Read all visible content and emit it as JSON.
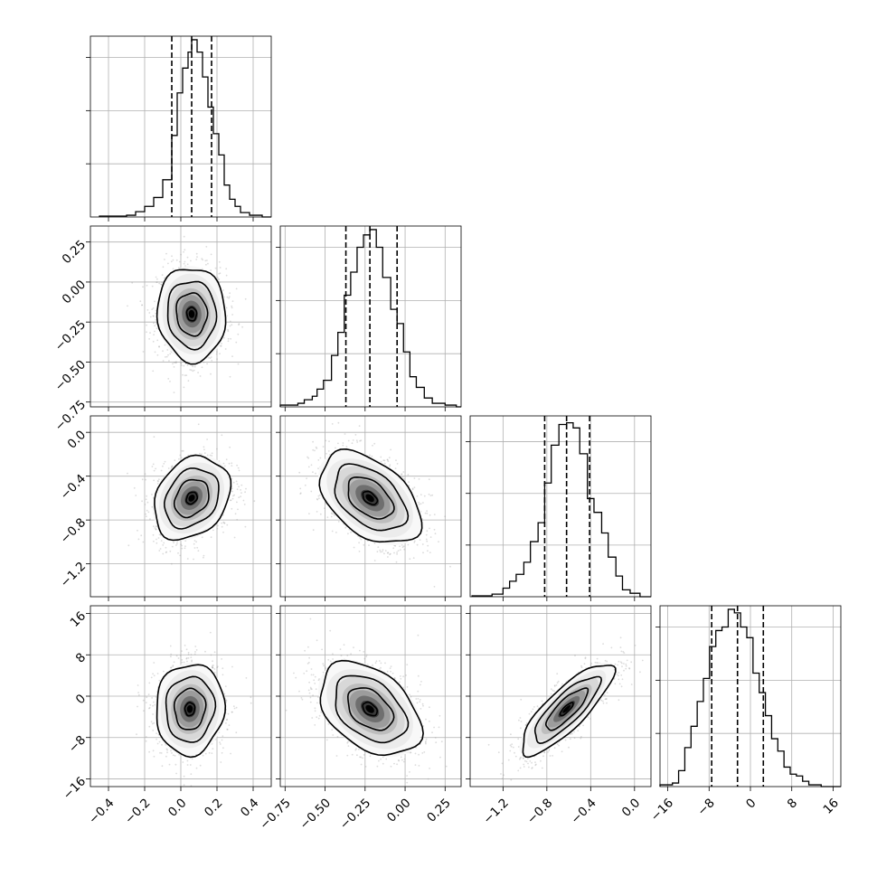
{
  "chart_data": {
    "type": "corner",
    "n_params": 4,
    "params": [
      {
        "range": [
          -0.5,
          0.5
        ],
        "ticks": [
          -0.4,
          -0.2,
          0.0,
          0.2,
          0.4
        ],
        "tick_labels": [
          "−0.4",
          "−0.2",
          "0.0",
          "0.2",
          "0.4"
        ],
        "quantiles": [
          -0.05,
          0.06,
          0.17
        ],
        "hist_max": 1.02,
        "hist": [
          {
            "x": -0.4,
            "y": 0.005
          },
          {
            "x": -0.3,
            "y": 0.01
          },
          {
            "x": -0.25,
            "y": 0.03
          },
          {
            "x": -0.2,
            "y": 0.06
          },
          {
            "x": -0.15,
            "y": 0.11
          },
          {
            "x": -0.1,
            "y": 0.21
          },
          {
            "x": -0.05,
            "y": 0.46
          },
          {
            "x": -0.02,
            "y": 0.7
          },
          {
            "x": 0.01,
            "y": 0.84
          },
          {
            "x": 0.04,
            "y": 0.93
          },
          {
            "x": 0.06,
            "y": 1.0
          },
          {
            "x": 0.09,
            "y": 0.93
          },
          {
            "x": 0.12,
            "y": 0.79
          },
          {
            "x": 0.15,
            "y": 0.62
          },
          {
            "x": 0.18,
            "y": 0.47
          },
          {
            "x": 0.21,
            "y": 0.35
          },
          {
            "x": 0.24,
            "y": 0.18
          },
          {
            "x": 0.27,
            "y": 0.1
          },
          {
            "x": 0.3,
            "y": 0.06
          },
          {
            "x": 0.33,
            "y": 0.025
          },
          {
            "x": 0.38,
            "y": 0.01
          },
          {
            "x": 0.45,
            "y": 0.0
          }
        ]
      },
      {
        "range": [
          -0.78,
          0.35
        ],
        "ticks": [
          -0.75,
          -0.5,
          -0.25,
          0.0,
          0.25
        ],
        "tick_labels": [
          "−0.75",
          "−0.50",
          "−0.25",
          "0.00",
          "0.25"
        ],
        "quantiles": [
          -0.37,
          -0.22,
          -0.05
        ],
        "hist_max": 1.02,
        "hist": [
          {
            "x": -0.73,
            "y": 0.01
          },
          {
            "x": -0.67,
            "y": 0.02
          },
          {
            "x": -0.63,
            "y": 0.04
          },
          {
            "x": -0.58,
            "y": 0.06
          },
          {
            "x": -0.55,
            "y": 0.1
          },
          {
            "x": -0.51,
            "y": 0.15
          },
          {
            "x": -0.46,
            "y": 0.29
          },
          {
            "x": -0.42,
            "y": 0.42
          },
          {
            "x": -0.38,
            "y": 0.63
          },
          {
            "x": -0.34,
            "y": 0.76
          },
          {
            "x": -0.3,
            "y": 0.9
          },
          {
            "x": -0.26,
            "y": 0.97
          },
          {
            "x": -0.22,
            "y": 1.0
          },
          {
            "x": -0.18,
            "y": 0.9
          },
          {
            "x": -0.14,
            "y": 0.73
          },
          {
            "x": -0.09,
            "y": 0.55
          },
          {
            "x": -0.05,
            "y": 0.47
          },
          {
            "x": -0.01,
            "y": 0.31
          },
          {
            "x": 0.03,
            "y": 0.17
          },
          {
            "x": 0.07,
            "y": 0.11
          },
          {
            "x": 0.12,
            "y": 0.05
          },
          {
            "x": 0.17,
            "y": 0.02
          },
          {
            "x": 0.25,
            "y": 0.01
          },
          {
            "x": 0.32,
            "y": 0.0
          }
        ]
      },
      {
        "range": [
          -1.5,
          0.15
        ],
        "ticks": [
          -1.2,
          -0.8,
          -0.4,
          0.0
        ],
        "tick_labels": [
          "−1.2",
          "−0.8",
          "−0.4",
          "0.0"
        ],
        "quantiles": [
          -0.82,
          -0.62,
          -0.41
        ],
        "hist_max": 1.05,
        "hist": [
          {
            "x": -1.4,
            "y": 0.005
          },
          {
            "x": -1.3,
            "y": 0.015
          },
          {
            "x": -1.2,
            "y": 0.05
          },
          {
            "x": -1.14,
            "y": 0.09
          },
          {
            "x": -1.08,
            "y": 0.13
          },
          {
            "x": -1.01,
            "y": 0.2
          },
          {
            "x": -0.95,
            "y": 0.32
          },
          {
            "x": -0.88,
            "y": 0.43
          },
          {
            "x": -0.82,
            "y": 0.66
          },
          {
            "x": -0.76,
            "y": 0.88
          },
          {
            "x": -0.69,
            "y": 1.0
          },
          {
            "x": -0.62,
            "y": 1.01
          },
          {
            "x": -0.56,
            "y": 0.98
          },
          {
            "x": -0.5,
            "y": 0.83
          },
          {
            "x": -0.43,
            "y": 0.57
          },
          {
            "x": -0.37,
            "y": 0.49
          },
          {
            "x": -0.3,
            "y": 0.37
          },
          {
            "x": -0.24,
            "y": 0.23
          },
          {
            "x": -0.17,
            "y": 0.12
          },
          {
            "x": -0.11,
            "y": 0.04
          },
          {
            "x": -0.04,
            "y": 0.02
          },
          {
            "x": 0.05,
            "y": 0.0
          }
        ]
      },
      {
        "range": [
          -17.5,
          17.5
        ],
        "ticks": [
          -16,
          -8,
          0,
          8,
          16
        ],
        "tick_labels": [
          "−16",
          "−8",
          "0",
          "8",
          "16"
        ],
        "quantiles": [
          -7.5,
          -2.5,
          2.5
        ],
        "hist_max": 1.02,
        "hist": [
          {
            "x": -16.3,
            "y": 0.01
          },
          {
            "x": -15.1,
            "y": 0.02
          },
          {
            "x": -13.9,
            "y": 0.09
          },
          {
            "x": -12.7,
            "y": 0.22
          },
          {
            "x": -11.5,
            "y": 0.34
          },
          {
            "x": -10.3,
            "y": 0.48
          },
          {
            "x": -9.1,
            "y": 0.61
          },
          {
            "x": -7.9,
            "y": 0.79
          },
          {
            "x": -6.7,
            "y": 0.88
          },
          {
            "x": -5.5,
            "y": 0.9
          },
          {
            "x": -4.3,
            "y": 1.0
          },
          {
            "x": -3.1,
            "y": 0.98
          },
          {
            "x": -1.9,
            "y": 0.9
          },
          {
            "x": -0.7,
            "y": 0.84
          },
          {
            "x": 0.5,
            "y": 0.64
          },
          {
            "x": 1.7,
            "y": 0.53
          },
          {
            "x": 2.9,
            "y": 0.4
          },
          {
            "x": 4.1,
            "y": 0.27
          },
          {
            "x": 5.3,
            "y": 0.2
          },
          {
            "x": 6.5,
            "y": 0.11
          },
          {
            "x": 7.7,
            "y": 0.07
          },
          {
            "x": 8.9,
            "y": 0.06
          },
          {
            "x": 10.1,
            "y": 0.03
          },
          {
            "x": 11.3,
            "y": 0.01
          },
          {
            "x": 12.5,
            "y": 0.01
          },
          {
            "x": 13.7,
            "y": 0.0
          }
        ]
      }
    ],
    "pairs": [
      {
        "row": 1,
        "col": 0,
        "mean": [
          0.06,
          -0.2
        ],
        "std": [
          0.09,
          0.14
        ],
        "corr": -0.05
      },
      {
        "row": 2,
        "col": 0,
        "mean": [
          0.06,
          -0.6
        ],
        "std": [
          0.1,
          0.18
        ],
        "corr": 0.25
      },
      {
        "row": 2,
        "col": 1,
        "mean": [
          -0.22,
          -0.6
        ],
        "std": [
          0.15,
          0.2
        ],
        "corr": -0.45
      },
      {
        "row": 3,
        "col": 0,
        "mean": [
          0.05,
          -2.5
        ],
        "std": [
          0.09,
          4.2
        ],
        "corr": 0.05
      },
      {
        "row": 3,
        "col": 1,
        "mean": [
          -0.22,
          -2.5
        ],
        "std": [
          0.15,
          4.3
        ],
        "corr": -0.4
      },
      {
        "row": 3,
        "col": 2,
        "mean": [
          -0.62,
          -2.5
        ],
        "std": [
          0.2,
          4.2
        ],
        "corr": 0.82
      }
    ],
    "grid": true,
    "colors": {
      "points": "#9a9a9a",
      "line": "#000000",
      "grid": "#b0b0b0",
      "shade_dark": "#000000",
      "shade_light": "#ffffff"
    }
  }
}
